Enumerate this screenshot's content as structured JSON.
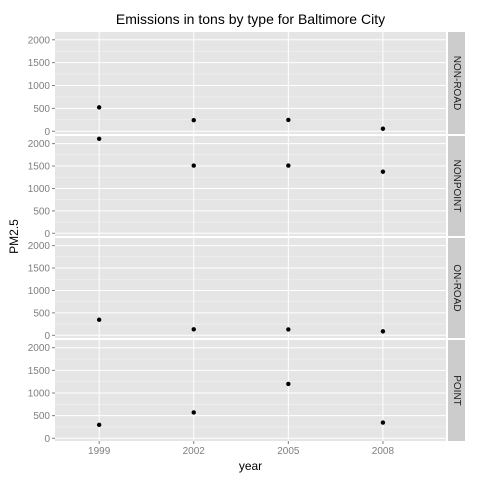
{
  "chart_data": {
    "type": "scatter",
    "title": "Emissions in tons by type for Baltimore City",
    "xlabel": "year",
    "ylabel": "PM2.5",
    "x": [
      1999,
      2002,
      2005,
      2008
    ],
    "x_tick_labels": [
      "1999",
      "2002",
      "2005",
      "2008"
    ],
    "ylim": [
      -60,
      2170
    ],
    "y_ticks": [
      0,
      500,
      1000,
      1500,
      2000
    ],
    "y_tick_labels": [
      "0",
      "500",
      "1000",
      "1500",
      "2000"
    ],
    "grid": true,
    "facet_strip_position": "right",
    "point_color": "#000000",
    "panel_background": "#e5e5e5",
    "strip_background": "#cccccc",
    "grid_color": "#ffffff",
    "panels": [
      {
        "label": "NON-ROAD",
        "values": [
          522,
          241,
          248,
          55
        ]
      },
      {
        "label": "NONPOINT",
        "values": [
          2108,
          1510,
          1510,
          1373
        ]
      },
      {
        "label": "ON-ROAD",
        "values": [
          347,
          134,
          131,
          88
        ]
      },
      {
        "label": "POINT",
        "values": [
          297,
          570,
          1199,
          347
        ]
      }
    ]
  }
}
